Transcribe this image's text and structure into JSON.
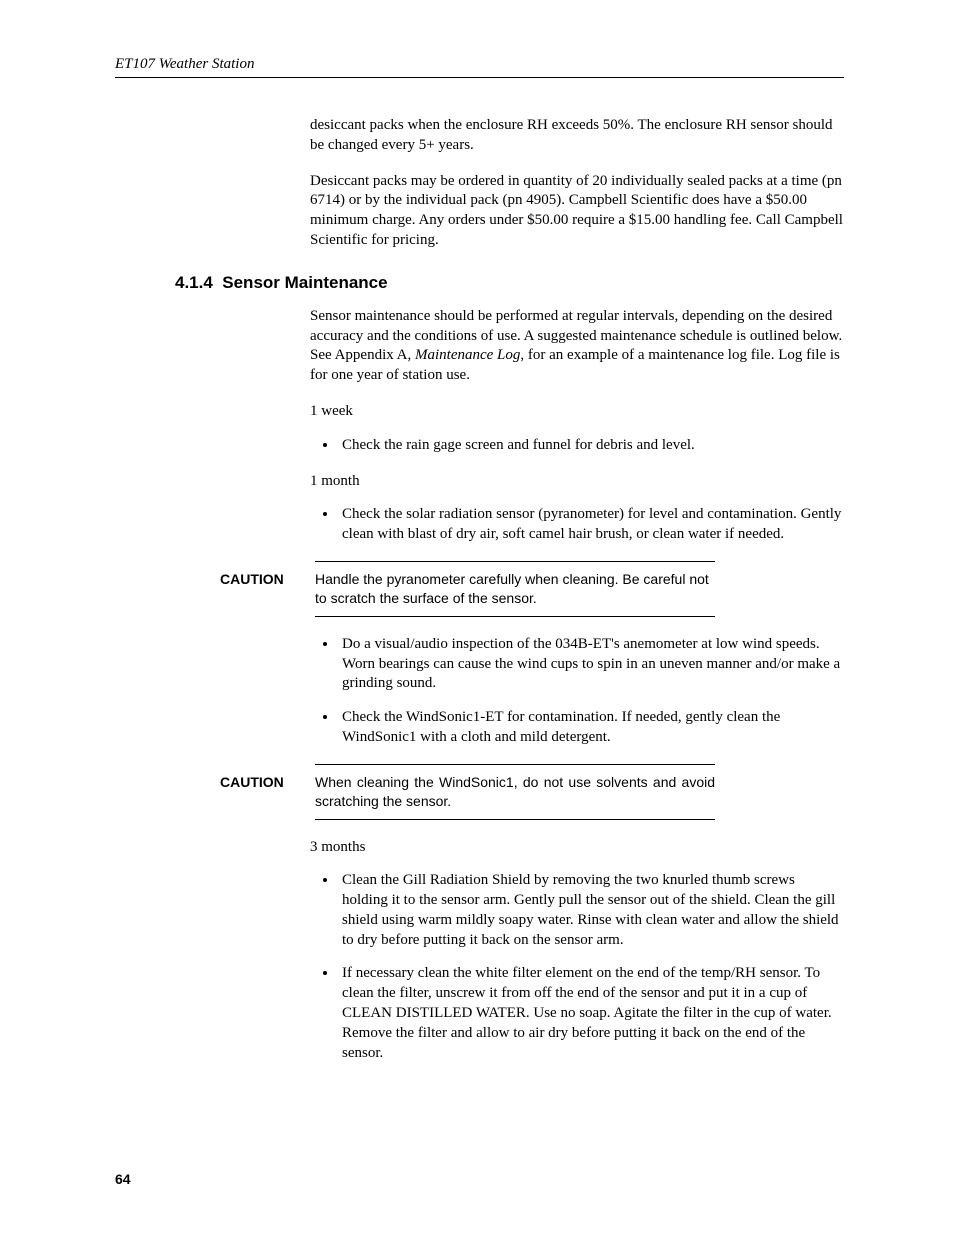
{
  "header": {
    "running_title": "ET107 Weather Station"
  },
  "intro": {
    "p1": "desiccant packs when the enclosure RH exceeds 50%. The enclosure RH sensor should be changed every 5+ years.",
    "p2": "Desiccant packs may be ordered in quantity of 20 individually sealed packs at a time (pn 6714) or by the individual pack (pn 4905). Campbell Scientific does have a $50.00 minimum charge. Any orders under $50.00 require a $15.00 handling fee. Call Campbell Scientific for pricing."
  },
  "section": {
    "number": "4.1.4",
    "title": "Sensor Maintenance",
    "intro_pre": "Sensor maintenance should be performed at regular intervals, depending on the desired accuracy and the conditions of use.  A suggested maintenance schedule is outlined below.  See Appendix A, ",
    "intro_italic": "Maintenance Log",
    "intro_post": ", for an example of a maintenance log file.  Log file is for one year of station use."
  },
  "week": {
    "label": "1 week",
    "items": [
      "Check the rain gage screen and funnel for debris and level."
    ]
  },
  "month": {
    "label": "1 month",
    "items_before": [
      "Check the solar radiation sensor (pyranometer) for level and contamination. Gently clean with blast of dry air, soft camel hair brush, or clean water if needed."
    ],
    "caution1": {
      "label": "CAUTION",
      "text": "Handle the pyranometer carefully when cleaning.  Be careful not to scratch the surface of the sensor."
    },
    "items_mid": [
      "Do a visual/audio inspection of the 034B-ET's anemometer at low wind speeds. Worn bearings can cause the wind cups to spin in an uneven manner and/or make a grinding sound.",
      "Check the WindSonic1-ET for contamination.  If needed, gently clean the WindSonic1 with a cloth and mild detergent."
    ],
    "caution2": {
      "label": "CAUTION",
      "text": "When cleaning the WindSonic1, do not use solvents and avoid scratching the sensor."
    }
  },
  "three_months": {
    "label": "3 months",
    "items": [
      "Clean the Gill Radiation Shield by removing the two knurled thumb screws holding it to the sensor arm. Gently pull the sensor out of the shield. Clean the gill shield using warm mildly soapy water. Rinse with clean water and allow the shield to dry before putting it back on the sensor arm.",
      "If necessary clean the white filter element on the end of the temp/RH sensor. To clean the filter, unscrew it from off the end of the sensor and put it in a cup of CLEAN DISTILLED WATER. Use no soap. Agitate the filter in the cup of water. Remove the filter and allow to air dry before putting it back on the end of the sensor."
    ]
  },
  "page_number": "64"
}
